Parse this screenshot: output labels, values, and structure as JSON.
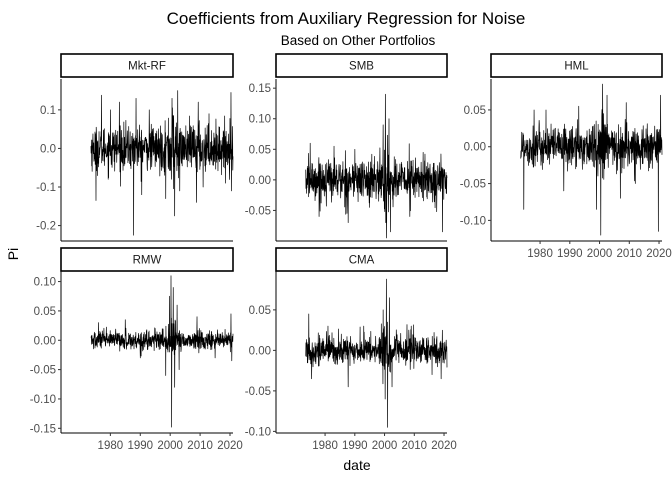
{
  "chart_title": "Coefficients from Auxiliary Regression for Noise",
  "chart_subtitle": "Based on Other Portfolios",
  "x_axis_title": "date",
  "y_axis_title": "Pi",
  "chart_data": {
    "type": "line",
    "title": "Coefficients from Auxiliary Regression for Noise",
    "subtitle": "Based on Other Portfolios",
    "xlabel": "date",
    "ylabel": "Pi",
    "grid": false,
    "layout": "facet_wrap 3 columns, free y scales",
    "x_range": [
      1963.5,
      2021.0
    ],
    "x_ticks": [
      1980,
      1990,
      2000,
      2010,
      2020
    ],
    "x_tick_labels": [
      "1980",
      "1990",
      "2000",
      "2010",
      "2020"
    ],
    "series_color": "#000000",
    "panels": [
      {
        "name": "Mkt-RF",
        "ylim": [
          -0.24,
          0.18
        ],
        "y_ticks": [
          0.1,
          0.0,
          -0.1,
          -0.2
        ],
        "y_tick_labels": [
          "0.1",
          "0.0",
          "-0.1",
          "-0.2"
        ],
        "noise_sd": 0.028,
        "spikes": [
          {
            "x": 1975.2,
            "y": -0.135
          },
          {
            "x": 1977.0,
            "y": 0.138
          },
          {
            "x": 1980.0,
            "y": 0.1
          },
          {
            "x": 1983.0,
            "y": 0.12
          },
          {
            "x": 1987.8,
            "y": -0.225
          },
          {
            "x": 1988.6,
            "y": 0.13
          },
          {
            "x": 1990.5,
            "y": -0.12
          },
          {
            "x": 1993.0,
            "y": 0.1
          },
          {
            "x": 1998.5,
            "y": -0.13
          },
          {
            "x": 2000.6,
            "y": 0.13
          },
          {
            "x": 2001.5,
            "y": -0.175
          },
          {
            "x": 2002.5,
            "y": 0.15
          },
          {
            "x": 2003.2,
            "y": -0.11
          },
          {
            "x": 2008.8,
            "y": -0.14
          },
          {
            "x": 2009.4,
            "y": 0.12
          },
          {
            "x": 2011.0,
            "y": -0.1
          },
          {
            "x": 2013.0,
            "y": 0.09
          },
          {
            "x": 2018.5,
            "y": -0.09
          },
          {
            "x": 2020.3,
            "y": 0.145
          },
          {
            "x": 2020.5,
            "y": -0.11
          }
        ]
      },
      {
        "name": "SMB",
        "ylim": [
          -0.1,
          0.165
        ],
        "y_ticks": [
          0.15,
          0.1,
          0.05,
          0.0,
          -0.05
        ],
        "y_tick_labels": [
          "0.15",
          "0.10",
          "0.05",
          "0.00",
          "-0.05"
        ],
        "noise_sd": 0.017,
        "spikes": [
          {
            "x": 1975.0,
            "y": 0.06
          },
          {
            "x": 1978.0,
            "y": -0.06
          },
          {
            "x": 1983.0,
            "y": 0.055
          },
          {
            "x": 1987.8,
            "y": -0.07
          },
          {
            "x": 1990.0,
            "y": 0.05
          },
          {
            "x": 1995.0,
            "y": -0.045
          },
          {
            "x": 1999.5,
            "y": 0.09
          },
          {
            "x": 2000.3,
            "y": 0.14
          },
          {
            "x": 2000.7,
            "y": -0.095
          },
          {
            "x": 2001.5,
            "y": 0.1
          },
          {
            "x": 2002.0,
            "y": -0.085
          },
          {
            "x": 2008.5,
            "y": -0.06
          },
          {
            "x": 2013.0,
            "y": 0.045
          },
          {
            "x": 2019.5,
            "y": -0.085
          }
        ]
      },
      {
        "name": "HML",
        "ylim": [
          -0.128,
          0.092
        ],
        "y_ticks": [
          0.05,
          0.0,
          -0.05,
          -0.1
        ],
        "y_tick_labels": [
          "0.05",
          "0.00",
          "-0.05",
          "-0.10"
        ],
        "noise_sd": 0.014,
        "spikes": [
          {
            "x": 1974.5,
            "y": -0.085
          },
          {
            "x": 1978.0,
            "y": 0.05
          },
          {
            "x": 1982.0,
            "y": 0.05
          },
          {
            "x": 1988.0,
            "y": -0.06
          },
          {
            "x": 1993.0,
            "y": 0.055
          },
          {
            "x": 1999.0,
            "y": -0.085
          },
          {
            "x": 2000.4,
            "y": -0.12
          },
          {
            "x": 2001.0,
            "y": 0.085
          },
          {
            "x": 2002.5,
            "y": 0.07
          },
          {
            "x": 2007.0,
            "y": -0.07
          },
          {
            "x": 2009.0,
            "y": 0.06
          },
          {
            "x": 2012.0,
            "y": -0.05
          },
          {
            "x": 2019.8,
            "y": -0.115
          },
          {
            "x": 2020.5,
            "y": 0.07
          }
        ]
      },
      {
        "name": "RMW",
        "ylim": [
          -0.158,
          0.118
        ],
        "y_ticks": [
          0.1,
          0.05,
          0.0,
          -0.05,
          -0.1,
          -0.15
        ],
        "y_tick_labels": [
          "0.10",
          "0.05",
          "0.00",
          "-0.05",
          "-0.10",
          "-0.15"
        ],
        "noise_sd": 0.008,
        "spikes": [
          {
            "x": 1976.0,
            "y": 0.03
          },
          {
            "x": 1985.0,
            "y": 0.035
          },
          {
            "x": 1990.0,
            "y": -0.03
          },
          {
            "x": 1998.5,
            "y": -0.06
          },
          {
            "x": 1999.8,
            "y": 0.075
          },
          {
            "x": 2000.3,
            "y": 0.11
          },
          {
            "x": 2000.5,
            "y": -0.148
          },
          {
            "x": 2001.0,
            "y": 0.09
          },
          {
            "x": 2001.5,
            "y": -0.08
          },
          {
            "x": 2002.3,
            "y": 0.06
          },
          {
            "x": 2003.0,
            "y": -0.05
          },
          {
            "x": 2009.0,
            "y": 0.04
          },
          {
            "x": 2015.0,
            "y": -0.03
          },
          {
            "x": 2020.3,
            "y": 0.045
          },
          {
            "x": 2020.6,
            "y": -0.035
          }
        ]
      },
      {
        "name": "CMA",
        "ylim": [
          -0.102,
          0.098
        ],
        "y_ticks": [
          0.05,
          0.0,
          -0.05,
          -0.1
        ],
        "y_tick_labels": [
          "0.05",
          "0.00",
          "-0.05",
          "-0.10"
        ],
        "noise_sd": 0.009,
        "spikes": [
          {
            "x": 1974.5,
            "y": 0.045
          },
          {
            "x": 1975.5,
            "y": -0.035
          },
          {
            "x": 1981.0,
            "y": 0.03
          },
          {
            "x": 1987.8,
            "y": -0.045
          },
          {
            "x": 1993.0,
            "y": 0.03
          },
          {
            "x": 1999.5,
            "y": 0.05
          },
          {
            "x": 2000.2,
            "y": -0.06
          },
          {
            "x": 2000.6,
            "y": 0.088
          },
          {
            "x": 2001.0,
            "y": -0.095
          },
          {
            "x": 2001.6,
            "y": 0.065
          },
          {
            "x": 2002.5,
            "y": -0.045
          },
          {
            "x": 2009.0,
            "y": 0.03
          },
          {
            "x": 2016.0,
            "y": -0.03
          },
          {
            "x": 2019.0,
            "y": -0.035
          }
        ]
      }
    ]
  }
}
